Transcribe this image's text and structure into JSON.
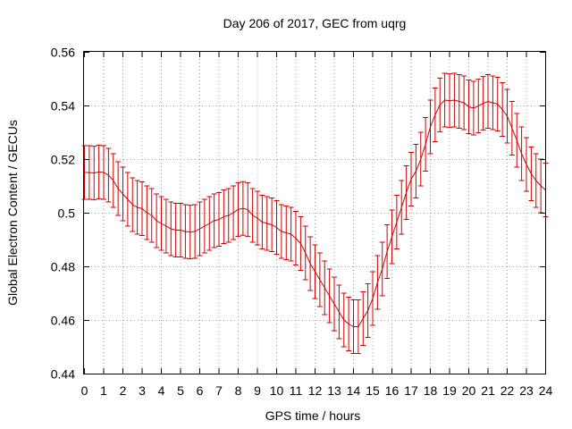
{
  "chart_data": {
    "type": "line",
    "title": "Day 206 of 2017, GEC from uqrg",
    "xlabel": "GPS time / hours",
    "ylabel": "Global Electron Content / GECUs",
    "xlim": [
      0,
      24
    ],
    "ylim": [
      0.44,
      0.56
    ],
    "grid": true,
    "x_ticks": [
      "0",
      "1",
      "2",
      "3",
      "4",
      "5",
      "6",
      "7",
      "8",
      "9",
      "10",
      "11",
      "12",
      "13",
      "14",
      "15",
      "16",
      "17",
      "18",
      "19",
      "20",
      "21",
      "22",
      "23",
      "24"
    ],
    "y_ticks": [
      "0.44",
      "0.46",
      "0.48",
      "0.5",
      "0.52",
      "0.54",
      "0.56"
    ],
    "series_color": "#cc0000",
    "series": [
      {
        "x": [
          0.0,
          0.25,
          0.5,
          0.75,
          1.0,
          1.25,
          1.5,
          1.75,
          2.0,
          2.25,
          2.5,
          2.75,
          3.0,
          3.25,
          3.5,
          3.75,
          4.0,
          4.25,
          4.5,
          4.75,
          5.0,
          5.25,
          5.5,
          5.75,
          6.0,
          6.25,
          6.5,
          6.75,
          7.0,
          7.25,
          7.5,
          7.75,
          8.0,
          8.25,
          8.5,
          8.75,
          9.0,
          9.25,
          9.5,
          9.75,
          10.0,
          10.25,
          10.5,
          10.75,
          11.0,
          11.25,
          11.5,
          11.75,
          12.0,
          12.25,
          12.5,
          12.75,
          13.0,
          13.25,
          13.5,
          13.75,
          14.0,
          14.25,
          14.5,
          14.75,
          15.0,
          15.25,
          15.5,
          15.75,
          16.0,
          16.25,
          16.5,
          16.75,
          17.0,
          17.25,
          17.5,
          17.75,
          18.0,
          18.25,
          18.5,
          18.75,
          19.0,
          19.25,
          19.5,
          19.75,
          20.0,
          20.25,
          20.5,
          20.75,
          21.0,
          21.25,
          21.5,
          21.75,
          22.0,
          22.25,
          22.5,
          22.75,
          23.0,
          23.25,
          23.5,
          23.75,
          24.0
        ],
        "y": [
          0.515,
          0.515,
          0.5148,
          0.5152,
          0.515,
          0.514,
          0.512,
          0.509,
          0.507,
          0.505,
          0.503,
          0.502,
          0.5015,
          0.5,
          0.499,
          0.497,
          0.496,
          0.495,
          0.494,
          0.4935,
          0.4935,
          0.493,
          0.4928,
          0.493,
          0.494,
          0.495,
          0.496,
          0.497,
          0.4975,
          0.4985,
          0.499,
          0.5,
          0.5012,
          0.5016,
          0.5012,
          0.499,
          0.498,
          0.4965,
          0.496,
          0.4955,
          0.4945,
          0.493,
          0.4925,
          0.492,
          0.4905,
          0.4885,
          0.485,
          0.481,
          0.478,
          0.475,
          0.472,
          0.469,
          0.466,
          0.463,
          0.46,
          0.4585,
          0.4575,
          0.4575,
          0.4605,
          0.4635,
          0.468,
          0.474,
          0.479,
          0.4855,
          0.491,
          0.4965,
          0.502,
          0.5075,
          0.5125,
          0.5155,
          0.52,
          0.5255,
          0.532,
          0.5365,
          0.5402,
          0.542,
          0.5418,
          0.542,
          0.5415,
          0.541,
          0.5395,
          0.539,
          0.5398,
          0.5408,
          0.5415,
          0.541,
          0.5405,
          0.5385,
          0.536,
          0.5315,
          0.527,
          0.522,
          0.518,
          0.5145,
          0.512,
          0.51,
          0.5085
        ],
        "error": 0.01
      }
    ]
  }
}
